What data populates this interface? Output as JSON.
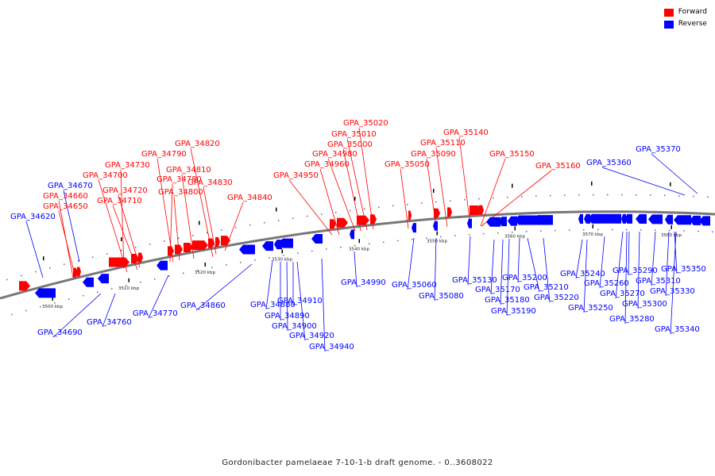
{
  "legend": {
    "forward_label": "Forward",
    "reverse_label": "Reverse",
    "forward_color": "#ff0000",
    "reverse_color": "#0000ff"
  },
  "caption": "Gordonibacter pamelaeae 7-10-1-b draft genome. - 0..3608022",
  "scale_labels": [
    "3500 kbp",
    "3510 kbp",
    "3520 kbp",
    "3530 kbp",
    "3540 kbp",
    "3550 kbp",
    "3560 kbp",
    "3570 kbp",
    "3580 kbp"
  ],
  "genes_forward": [
    "GPA_34650",
    "GPA_34660",
    "GPA_34700",
    "GPA_34710",
    "GPA_34720",
    "GPA_34730",
    "GPA_34780",
    "GPA_34790",
    "GPA_34800",
    "GPA_34810",
    "GPA_34820",
    "GPA_34830",
    "GPA_34840",
    "GPA_34950",
    "GPA_34960",
    "GPA_34980",
    "GPA_35000",
    "GPA_35010",
    "GPA_35020",
    "GPA_35050",
    "GPA_35090",
    "GPA_35110",
    "GPA_35140",
    "GPA_35150",
    "GPA_35160"
  ],
  "genes_reverse": [
    "GPA_34620",
    "GPA_34670",
    "GPA_34690",
    "GPA_34760",
    "GPA_34770",
    "GPA_34860",
    "GPA_34880",
    "GPA_34890",
    "GPA_34900",
    "GPA_34910",
    "GPA_34920",
    "GPA_34940",
    "GPA_34990",
    "GPA_35060",
    "GPA_35080",
    "GPA_35130",
    "GPA_35170",
    "GPA_35180",
    "GPA_35190",
    "GPA_35200",
    "GPA_35210",
    "GPA_35220",
    "GPA_35240",
    "GPA_35250",
    "GPA_35260",
    "GPA_35270",
    "GPA_35280",
    "GPA_35290",
    "GPA_35300",
    "GPA_35310",
    "GPA_35330",
    "GPA_35340",
    "GPA_35350",
    "GPA_35360",
    "GPA_35370"
  ]
}
